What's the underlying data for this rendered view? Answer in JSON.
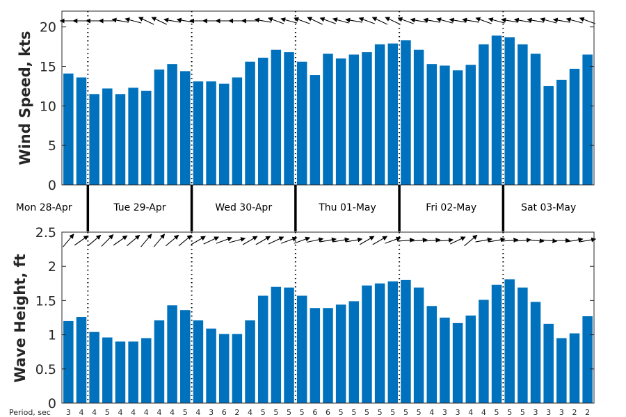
{
  "chart_data": [
    {
      "type": "bar",
      "ylabel": "Wind Speed, kts",
      "ylim": [
        0,
        22
      ],
      "yticks": [
        0,
        5,
        10,
        15,
        20
      ],
      "bar_color": "#0072BD",
      "values": [
        14.1,
        13.6,
        11.5,
        12.2,
        11.5,
        12.3,
        11.9,
        14.6,
        15.3,
        14.4,
        13.1,
        13.1,
        12.8,
        13.6,
        15.6,
        16.1,
        17.1,
        16.8,
        15.6,
        13.9,
        16.6,
        16.0,
        16.5,
        16.8,
        17.8,
        17.9,
        18.3,
        17.1,
        15.3,
        15.1,
        14.5,
        15.2,
        17.8,
        18.9,
        18.7,
        17.8,
        16.6,
        12.5,
        13.3,
        14.7,
        16.5
      ],
      "direction_arrows": "wind direction arrow over each bar"
    },
    {
      "type": "bar",
      "ylabel": "Wave Height, ft",
      "ylim": [
        0,
        2.5
      ],
      "yticks": [
        "0",
        "0.5",
        "1",
        "1.5",
        "2",
        "2.5"
      ],
      "bar_color": "#0072BD",
      "values": [
        1.2,
        1.26,
        1.04,
        0.96,
        0.9,
        0.9,
        0.95,
        1.21,
        1.43,
        1.36,
        1.21,
        1.09,
        1.01,
        1.01,
        1.21,
        1.57,
        1.7,
        1.69,
        1.57,
        1.39,
        1.39,
        1.44,
        1.49,
        1.72,
        1.75,
        1.78,
        1.8,
        1.69,
        1.42,
        1.25,
        1.17,
        1.28,
        1.51,
        1.73,
        1.81,
        1.69,
        1.48,
        1.16,
        0.95,
        1.02,
        1.27
      ],
      "periods_label": "Period, sec",
      "periods": [
        3,
        4,
        4,
        5,
        4,
        4,
        4,
        4,
        4,
        5,
        4,
        3,
        6,
        2,
        4,
        5,
        5,
        5,
        5,
        6,
        6,
        5,
        5,
        5,
        5,
        5,
        5,
        5,
        4,
        3,
        3,
        4,
        4,
        5,
        5,
        5,
        3,
        3,
        3,
        2,
        2
      ],
      "direction_arrows": "wave direction arrow over each bar"
    }
  ],
  "days": [
    "Mon 28-Apr",
    "Tue 29-Apr",
    "Wed 30-Apr",
    "Thu 01-May",
    "Fri 02-May",
    "Sat 03-May"
  ],
  "day_start_index": [
    0,
    2,
    10,
    18,
    26,
    34
  ],
  "wind_arrow_angles_deg": [
    180,
    180,
    180,
    180,
    190,
    195,
    205,
    205,
    190,
    190,
    180,
    180,
    180,
    180,
    180,
    190,
    200,
    195,
    200,
    205,
    200,
    195,
    190,
    200,
    205,
    205,
    200,
    190,
    190,
    195,
    190,
    190,
    200,
    195,
    190,
    190,
    190,
    195,
    190,
    195,
    200
  ],
  "wave_arrow_angles_deg": [
    -50,
    -35,
    -40,
    -45,
    -35,
    -40,
    -50,
    -50,
    -40,
    -40,
    -30,
    -25,
    -20,
    -15,
    -30,
    -30,
    -25,
    -20,
    -20,
    -12,
    -10,
    -10,
    -10,
    -30,
    -30,
    -20,
    -5,
    -5,
    -5,
    -5,
    -25,
    -40,
    -10,
    -10,
    -5,
    -5,
    5,
    5,
    0,
    -10,
    -10
  ]
}
